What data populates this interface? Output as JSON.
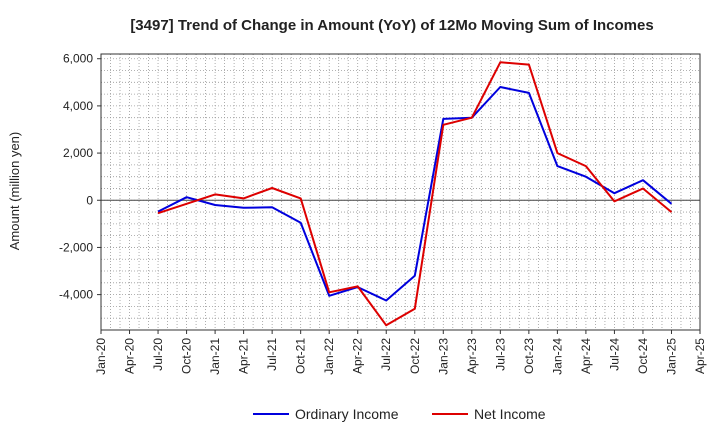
{
  "chart_data": {
    "type": "line",
    "title": "[3497]  Trend of Change in Amount (YoY) of 12Mo Moving Sum of Incomes",
    "xlabel": "",
    "ylabel": "Amount (million yen)",
    "ylim": [
      -5500,
      6200
    ],
    "yticks": [
      -4000,
      -2000,
      0,
      2000,
      4000,
      6000
    ],
    "ytick_labels": [
      "-4,000",
      "-2,000",
      "0",
      "2,000",
      "4,000",
      "6,000"
    ],
    "x_ticks": [
      "Jan-20",
      "Apr-20",
      "Jul-20",
      "Oct-20",
      "Jan-21",
      "Apr-21",
      "Jul-21",
      "Oct-21",
      "Jan-22",
      "Apr-22",
      "Jul-22",
      "Oct-22",
      "Jan-23",
      "Apr-23",
      "Jul-23",
      "Oct-23",
      "Jan-24",
      "Apr-24",
      "Jul-24",
      "Oct-24",
      "Jan-25",
      "Apr-25"
    ],
    "x": [
      "Jul-20",
      "Oct-20",
      "Jan-21",
      "Apr-21",
      "Jul-21",
      "Oct-21",
      "Jan-22",
      "Apr-22",
      "Jul-22",
      "Oct-22",
      "Jan-23",
      "Apr-23",
      "Jul-23",
      "Oct-23",
      "Jan-24",
      "Apr-24",
      "Jul-24",
      "Oct-24",
      "Jan-25"
    ],
    "grid": true,
    "legend_position": "bottom-center",
    "series": [
      {
        "name": "Ordinary Income",
        "color": "#0000dd",
        "values": [
          -480,
          130,
          -200,
          -320,
          -300,
          -950,
          -4050,
          -3680,
          -4250,
          -3200,
          3450,
          3500,
          4800,
          4550,
          1450,
          1000,
          300,
          850,
          -150
        ]
      },
      {
        "name": "Net Income",
        "color": "#dd0000",
        "values": [
          -550,
          -150,
          250,
          80,
          520,
          80,
          -3900,
          -3650,
          -5300,
          -4600,
          3200,
          3500,
          5850,
          5750,
          2000,
          1450,
          -50,
          500,
          -500
        ]
      }
    ]
  }
}
